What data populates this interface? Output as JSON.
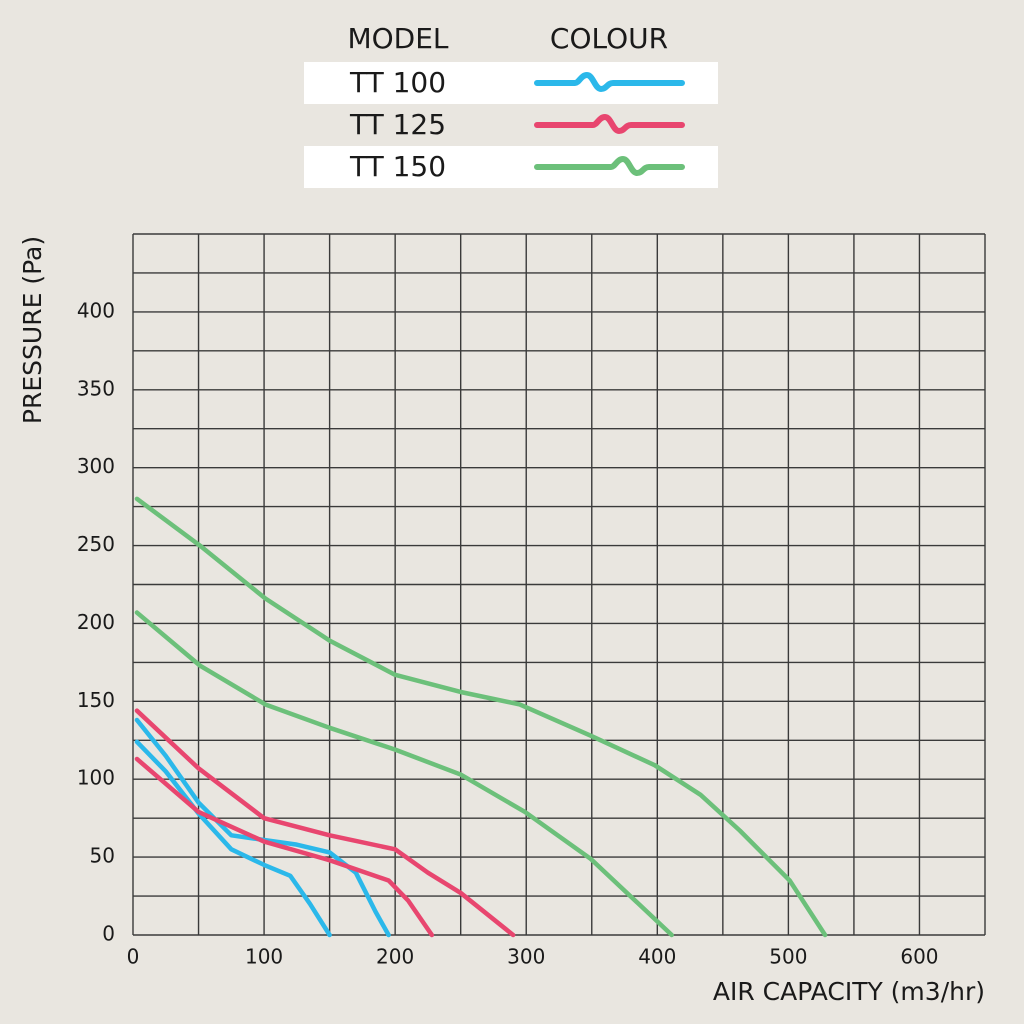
{
  "chart_data": {
    "type": "line",
    "legend_headers": [
      "MODEL",
      "COLOUR"
    ],
    "xlabel": "AIR CAPACITY (m3/hr)",
    "ylabel": "PRESSURE (Pa)",
    "xlim": [
      0,
      650
    ],
    "ylim": [
      0,
      450
    ],
    "xticks": [
      0,
      100,
      200,
      300,
      400,
      500,
      600
    ],
    "yticks": [
      0,
      50,
      100,
      150,
      200,
      250,
      300,
      350,
      400
    ],
    "xgrid": [
      0,
      50,
      100,
      150,
      200,
      250,
      300,
      350,
      400,
      450,
      500,
      550,
      600,
      650
    ],
    "ygrid": [
      0,
      25,
      50,
      75,
      100,
      125,
      150,
      175,
      200,
      225,
      250,
      275,
      300,
      325,
      350,
      375,
      400,
      425,
      450
    ],
    "series": [
      {
        "name": "TT 100",
        "color": "#2bb8ea",
        "lines": [
          {
            "x": [
              3,
              25,
              50,
              75,
              100,
              125,
              150,
              170,
              185,
              195
            ],
            "values": [
              138,
              115,
              85,
              64,
              61,
              58,
              53,
              40,
              15,
              0
            ]
          },
          {
            "x": [
              3,
              25,
              50,
              75,
              100,
              120,
              135,
              150
            ],
            "values": [
              124,
              105,
              78,
              55,
              45,
              38,
              20,
              0
            ]
          }
        ]
      },
      {
        "name": "TT 125",
        "color": "#e8466f",
        "lines": [
          {
            "x": [
              3,
              50,
              100,
              150,
              200,
              225,
              250,
              290
            ],
            "values": [
              144,
              107,
              75,
              64,
              55,
              40,
              27,
              0
            ]
          },
          {
            "x": [
              3,
              50,
              100,
              150,
              195,
              210,
              228
            ],
            "values": [
              113,
              79,
              60,
              48,
              35,
              22,
              0
            ]
          }
        ]
      },
      {
        "name": "TT 150",
        "color": "#6cc07a",
        "lines": [
          {
            "x": [
              3,
              51,
              101,
              150,
              200,
              250,
              295,
              349,
              398,
              433,
              463,
              501,
              528
            ],
            "values": [
              280,
              250,
              216,
              189,
              167,
              156,
              148,
              128,
              109,
              90,
              67,
              35,
              0
            ]
          },
          {
            "x": [
              3,
              51,
              101,
              150,
              200,
              250,
              299,
              349,
              387,
              411
            ],
            "values": [
              207,
              173,
              148,
              133,
              119,
              103,
              79,
              49,
              19,
              0
            ]
          }
        ]
      }
    ]
  }
}
